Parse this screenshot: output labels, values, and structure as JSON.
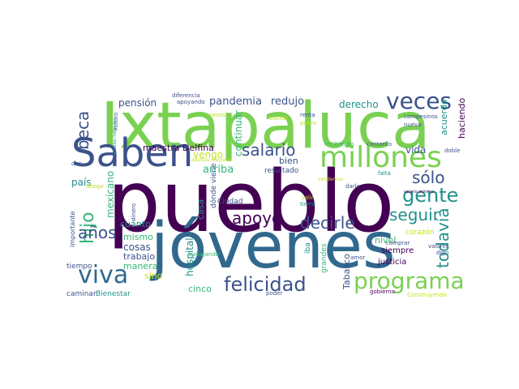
{
  "palette": {
    "dark_purple": "#440154",
    "indigo": "#3b528b",
    "blue": "#31688e",
    "teal": "#21918c",
    "green": "#35b779",
    "lime": "#7ad151",
    "yellow": "#c2df23"
  },
  "words": [
    {
      "text": "pueblo",
      "color": "#440154"
    },
    {
      "text": "Ixtapaluca",
      "color": "#7ad151"
    },
    {
      "text": "jóvenes",
      "color": "#31688e"
    },
    {
      "text": "Saben",
      "color": "#3b528b"
    },
    {
      "text": "millones",
      "color": "#7ad151"
    },
    {
      "text": "veces",
      "color": "#3b528b"
    },
    {
      "text": "viva",
      "color": "#31688e"
    },
    {
      "text": "programa",
      "color": "#7ad151"
    },
    {
      "text": "felicidad",
      "color": "#3b528b"
    },
    {
      "text": "gente",
      "color": "#21918c"
    },
    {
      "text": "apoyo",
      "color": "#440154"
    },
    {
      "text": "decirle",
      "color": "#3b528b"
    },
    {
      "text": "seguir",
      "color": "#21918c"
    },
    {
      "text": "salario",
      "color": "#3b528b"
    },
    {
      "text": "sólo",
      "color": "#3b528b"
    },
    {
      "text": "hijo",
      "color": "#35b779"
    },
    {
      "text": "beca",
      "color": "#3b528b"
    },
    {
      "text": "años",
      "color": "#3b528b"
    },
    {
      "text": "todavía",
      "color": "#21918c"
    },
    {
      "text": "pandemia",
      "color": "#3b528b"
    },
    {
      "text": "redujo",
      "color": "#3b528b"
    },
    {
      "text": "pensión",
      "color": "#3b528b"
    },
    {
      "text": "derecho",
      "color": "#21918c"
    },
    {
      "text": "maestra Delfina",
      "color": "#440154"
    },
    {
      "text": "vengo",
      "color": "#c2df23"
    },
    {
      "text": "arriba",
      "color": "#35b779"
    },
    {
      "text": "continuar",
      "color": "#35b779"
    },
    {
      "text": "vida",
      "color": "#3b528b"
    },
    {
      "text": "acuerdo",
      "color": "#21918c"
    },
    {
      "text": "haciendo",
      "color": "#440154"
    },
    {
      "text": "país",
      "color": "#21918c"
    },
    {
      "text": "mexicano",
      "color": "#35b779"
    },
    {
      "text": "cuánto",
      "color": "#21918c"
    },
    {
      "text": "mismo",
      "color": "#35b779"
    },
    {
      "text": "cosas",
      "color": "#3b528b"
    },
    {
      "text": "trabajo",
      "color": "#3b528b"
    },
    {
      "text": "manera",
      "color": "#35b779"
    },
    {
      "text": "sino",
      "color": "#c2df23"
    },
    {
      "text": "hospital",
      "color": "#21918c"
    },
    {
      "text": "casa",
      "color": "#21918c"
    },
    {
      "text": "cinco",
      "color": "#35b779"
    },
    {
      "text": "bien",
      "color": "#3b528b"
    },
    {
      "text": "resultado",
      "color": "#3b528b"
    },
    {
      "text": "Ciudad",
      "color": "#3b528b"
    },
    {
      "text": "dónde viene",
      "color": "#3b528b"
    },
    {
      "text": "Tabasco",
      "color": "#3b528b"
    },
    {
      "text": "nivel",
      "color": "#35b779"
    },
    {
      "text": "siempre",
      "color": "#440154"
    },
    {
      "text": "justicia",
      "color": "#440154"
    },
    {
      "text": "corazón",
      "color": "#c2df23"
    },
    {
      "text": "grandes",
      "color": "#35b779"
    },
    {
      "text": "iba",
      "color": "#21918c"
    },
    {
      "text": "tiempo",
      "color": "#3b528b"
    },
    {
      "text": "caminar",
      "color": "#3b528b"
    },
    {
      "text": "Bienestar",
      "color": "#21918c"
    },
    {
      "text": "importante",
      "color": "#3b528b"
    },
    {
      "text": "campesinos",
      "color": "#3b528b"
    },
    {
      "text": "nueva",
      "color": "#3b528b"
    },
    {
      "text": "recibiendo",
      "color": "#35b779"
    },
    {
      "text": "contento",
      "color": "#3b528b"
    },
    {
      "text": "renta",
      "color": "#3b528b"
    },
    {
      "text": "pobre",
      "color": "#c2df23"
    },
    {
      "text": "básico",
      "color": "#c2df23"
    },
    {
      "text": "diferencia",
      "color": "#3b528b"
    },
    {
      "text": "apoyando",
      "color": "#3b528b"
    },
    {
      "text": "pesos",
      "color": "#c2df23"
    },
    {
      "text": "Futuro",
      "color": "#3b528b"
    },
    {
      "text": "adultos mayores",
      "color": "#c2df23"
    },
    {
      "text": "doble",
      "color": "#3b528b"
    },
    {
      "text": "falta",
      "color": "#21918c"
    },
    {
      "text": "darle",
      "color": "#3b528b"
    },
    {
      "text": "salir",
      "color": "#c2df23"
    },
    {
      "text": "tierra",
      "color": "#21918c"
    },
    {
      "text": "comprar",
      "color": "#3b528b"
    },
    {
      "text": "gobierno",
      "color": "#440154"
    },
    {
      "text": "amor",
      "color": "#3b528b"
    },
    {
      "text": "poder",
      "color": "#3b528b"
    },
    {
      "text": "trabajando",
      "color": "#35b779"
    },
    {
      "text": "dinero",
      "color": "#3b528b"
    },
    {
      "text": "valores",
      "color": "#3b528b"
    },
    {
      "text": "digo",
      "color": "#3b528b"
    },
    {
      "text": "Construyendo",
      "color": "#c2df23"
    },
    {
      "text": "salario mínimo",
      "color": "#440154"
    },
    {
      "text": "dan",
      "color": "#3b528b"
    },
    {
      "text": "ahogo",
      "color": "#c2df23"
    },
    {
      "text": "pueblos indígenas",
      "color": "#21918c"
    },
    {
      "text": "vendemos",
      "color": "#c2df23"
    }
  ]
}
